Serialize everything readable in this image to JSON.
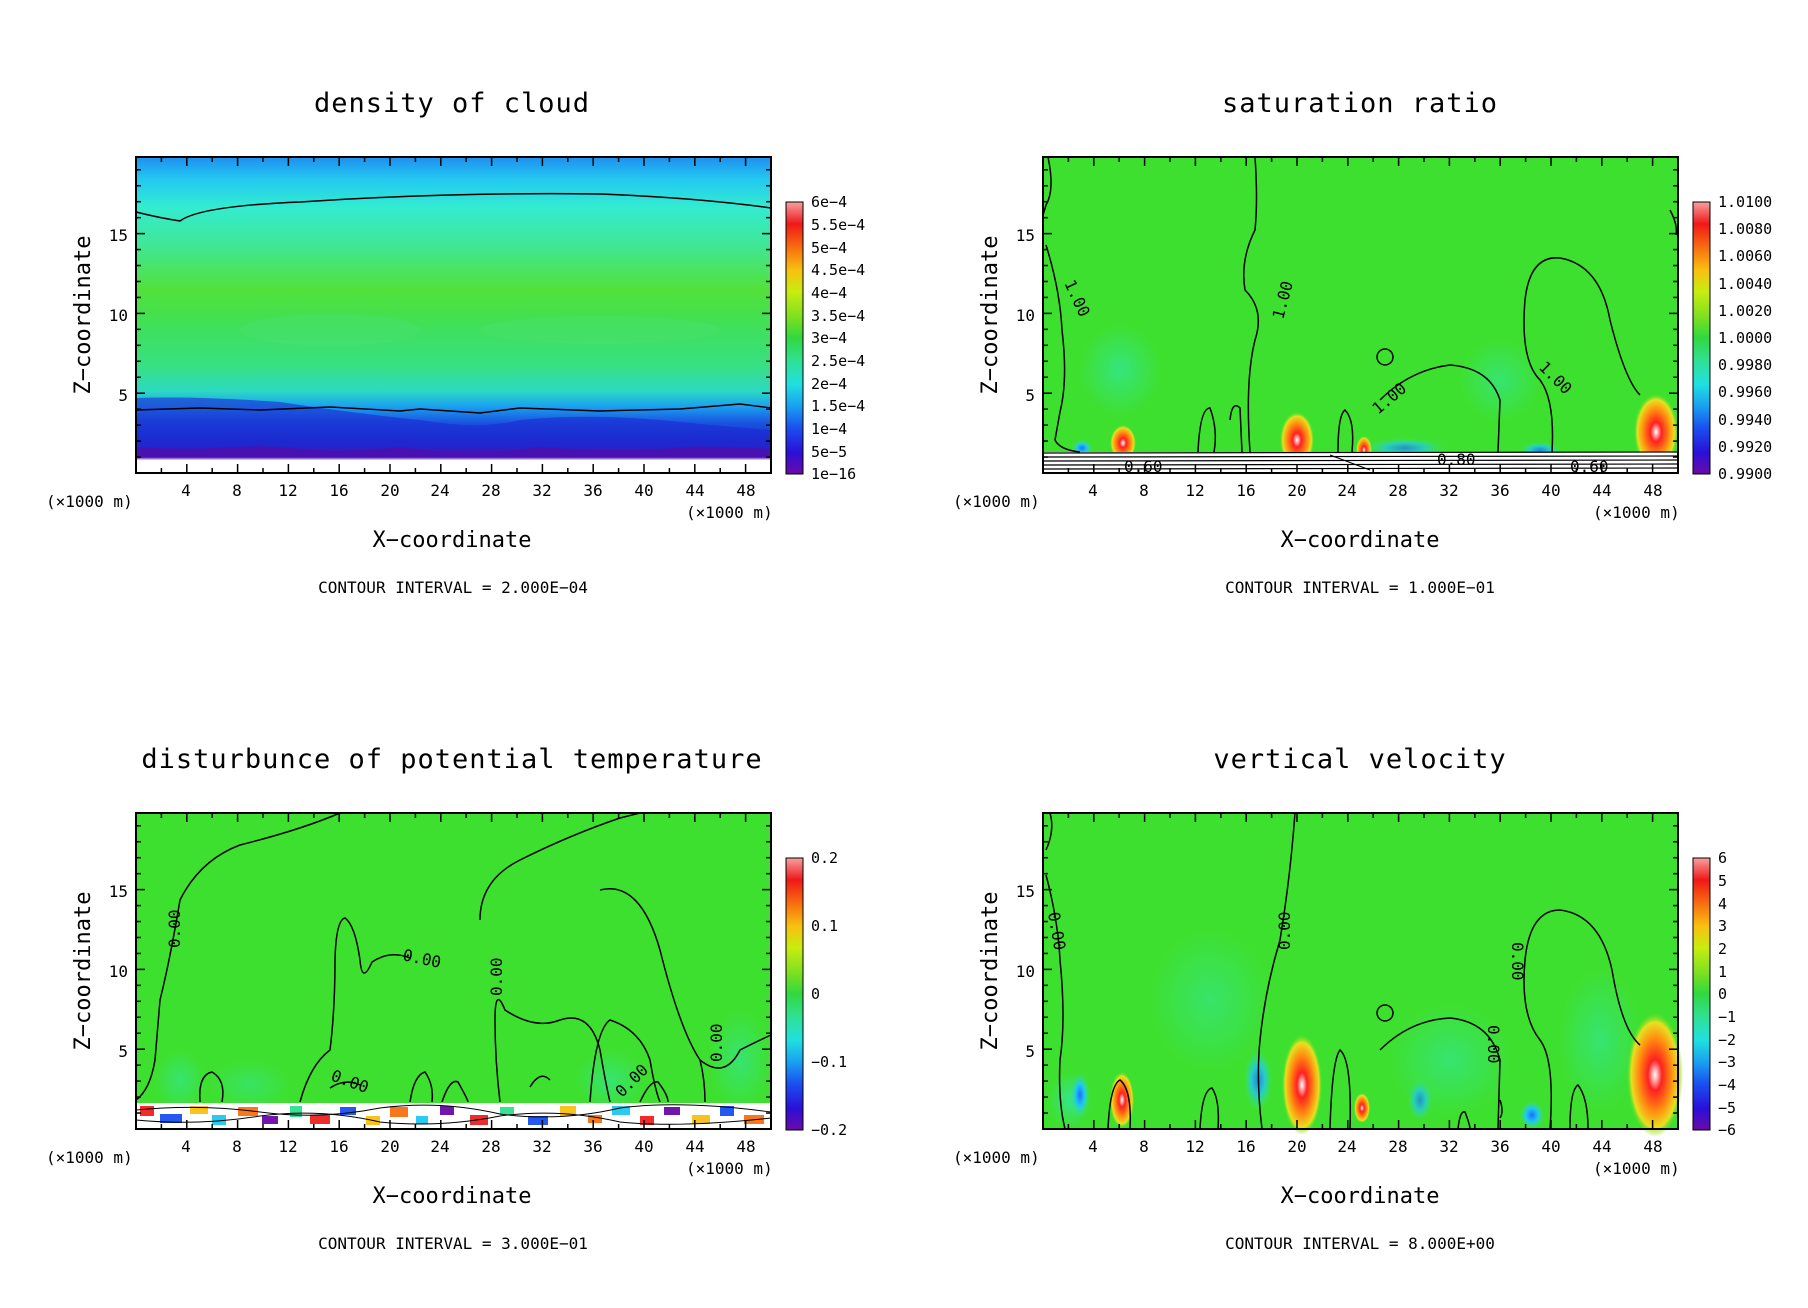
{
  "panels": [
    {
      "id": "density",
      "title": "density of cloud",
      "xlabel": "X−coordinate",
      "ylabel": "Z−coordinate",
      "x_unit": "(×1000 m)",
      "z_unit": "(×1000 m)",
      "x_ticks": [
        "4",
        "8",
        "12",
        "16",
        "20",
        "24",
        "28",
        "32",
        "36",
        "40",
        "44",
        "48"
      ],
      "z_ticks": [
        "5",
        "10",
        "15"
      ],
      "colorbar": [
        "6e−4",
        "5.5e−4",
        "5e−4",
        "4.5e−4",
        "4e−4",
        "3.5e−4",
        "3e−4",
        "2.5e−4",
        "2e−4",
        "1.5e−4",
        "1e−4",
        "5e−5",
        "1e−16"
      ],
      "contour_labels": [],
      "interval": "CONTOUR INTERVAL = 2.000E−04"
    },
    {
      "id": "saturation",
      "title": "saturation ratio",
      "xlabel": "X−coordinate",
      "ylabel": "Z−coordinate",
      "x_unit": "(×1000 m)",
      "z_unit": "(×1000 m)",
      "x_ticks": [
        "4",
        "8",
        "12",
        "16",
        "20",
        "24",
        "28",
        "32",
        "36",
        "40",
        "44",
        "48"
      ],
      "z_ticks": [
        "5",
        "10",
        "15"
      ],
      "colorbar": [
        "1.0100",
        "1.0080",
        "1.0060",
        "1.0040",
        "1.0020",
        "1.0000",
        "0.9980",
        "0.9960",
        "0.9940",
        "0.9920",
        "0.9900"
      ],
      "contour_labels": [
        "1.00",
        "1.00",
        "1.00",
        "1.00",
        "0.60",
        "0.80",
        "0.60"
      ],
      "interval": "CONTOUR INTERVAL = 1.000E−01"
    },
    {
      "id": "theta",
      "title": "disturbunce of potential temperature",
      "xlabel": "X−coordinate",
      "ylabel": "Z−coordinate",
      "x_unit": "(×1000 m)",
      "z_unit": "(×1000 m)",
      "x_ticks": [
        "4",
        "8",
        "12",
        "16",
        "20",
        "24",
        "28",
        "32",
        "36",
        "40",
        "44",
        "48"
      ],
      "z_ticks": [
        "5",
        "10",
        "15"
      ],
      "colorbar": [
        "0.2",
        "",
        "0.1",
        "",
        "0",
        "",
        "−0.1",
        "",
        "−0.2"
      ],
      "contour_labels": [
        "0.00",
        "0.00",
        "0.00",
        "0.00",
        "0.00",
        "0.00"
      ],
      "interval": "CONTOUR INTERVAL = 3.000E−01"
    },
    {
      "id": "w",
      "title": "vertical velocity",
      "xlabel": "X−coordinate",
      "ylabel": "Z−coordinate",
      "x_unit": "(×1000 m)",
      "z_unit": "(×1000 m)",
      "x_ticks": [
        "4",
        "8",
        "12",
        "16",
        "20",
        "24",
        "28",
        "32",
        "36",
        "40",
        "44",
        "48"
      ],
      "z_ticks": [
        "5",
        "10",
        "15"
      ],
      "colorbar": [
        "6",
        "5",
        "4",
        "3",
        "2",
        "1",
        "0",
        "−1",
        "−2",
        "−3",
        "−4",
        "−5",
        "−6"
      ],
      "contour_labels": [
        "0.00",
        "0.00",
        "0.00",
        "0.00"
      ],
      "interval": "CONTOUR INTERVAL = 8.000E+00"
    }
  ],
  "chart_data": [
    {
      "type": "heatmap",
      "title": "density of cloud",
      "xlabel": "X−coordinate",
      "ylabel": "Z−coordinate",
      "x_ticks": [
        4,
        8,
        12,
        16,
        20,
        24,
        28,
        32,
        36,
        40,
        44,
        48
      ],
      "y_ticks": [
        5,
        10,
        15
      ],
      "xlim": [
        0,
        50
      ],
      "ylim": [
        0,
        19.8
      ],
      "colorbar_levels": [
        "1e-16",
        "5e-5",
        "1e-4",
        "1.5e-4",
        "2e-4",
        "2.5e-4",
        "3e-4",
        "3.5e-4",
        "4e-4",
        "4.5e-4",
        "5e-4",
        "5.5e-4",
        "6e-4"
      ],
      "contour_interval": "2.000E-04"
    },
    {
      "type": "heatmap",
      "title": "saturation ratio",
      "xlabel": "X−coordinate",
      "ylabel": "Z−coordinate",
      "x_ticks": [
        4,
        8,
        12,
        16,
        20,
        24,
        28,
        32,
        36,
        40,
        44,
        48
      ],
      "y_ticks": [
        5,
        10,
        15
      ],
      "xlim": [
        0,
        50
      ],
      "ylim": [
        0,
        19.8
      ],
      "colorbar_levels": [
        0.99,
        0.992,
        0.994,
        0.996,
        0.998,
        1.0,
        1.002,
        1.004,
        1.006,
        1.008,
        1.01
      ],
      "contour_interval": "1.000E-01"
    },
    {
      "type": "heatmap",
      "title": "disturbunce of potential temperature",
      "xlabel": "X−coordinate",
      "ylabel": "Z−coordinate",
      "x_ticks": [
        4,
        8,
        12,
        16,
        20,
        24,
        28,
        32,
        36,
        40,
        44,
        48
      ],
      "y_ticks": [
        5,
        10,
        15
      ],
      "xlim": [
        0,
        50
      ],
      "ylim": [
        0,
        19.8
      ],
      "colorbar_levels": [
        -0.2,
        -0.1,
        0,
        0.1,
        0.2
      ],
      "contour_interval": "3.000E-01"
    },
    {
      "type": "heatmap",
      "title": "vertical velocity",
      "xlabel": "X−coordinate",
      "ylabel": "Z−coordinate",
      "x_ticks": [
        4,
        8,
        12,
        16,
        20,
        24,
        28,
        32,
        36,
        40,
        44,
        48
      ],
      "y_ticks": [
        5,
        10,
        15
      ],
      "xlim": [
        0,
        50
      ],
      "ylim": [
        0,
        19.8
      ],
      "colorbar_levels": [
        -6,
        -5,
        -4,
        -3,
        -2,
        -1,
        0,
        1,
        2,
        3,
        4,
        5,
        6
      ],
      "contour_interval": "8.000E+00"
    }
  ]
}
